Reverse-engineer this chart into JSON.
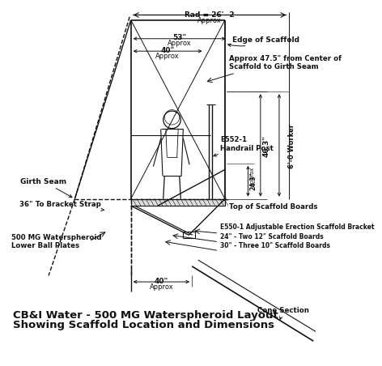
{
  "line_color": "#111111",
  "title_line1": "CB&I Water - 500 MG Waterspheroid Layout",
  "title_line2": "Showing Scaffold Location and Dimensions",
  "annotations": {
    "rad_label": "Rad = 26'- 2",
    "rad_sub": "Approx",
    "edge_scaffold": "Edge of Scaffold",
    "approx475a": "Approx 47.5\" from Center of",
    "approx475b": "Scaffold to Girth Seam",
    "dim53": "53\"",
    "approx53": "Approx",
    "dim40a": "40\"",
    "approx40a": "Approx",
    "girth_seam": "Girth Seam",
    "bracket36": "36\" To Bracket Strap",
    "lower_ball1": "500 MG Waterspheroid",
    "lower_ball2": "Lower Ball Plates",
    "handrail1": "E552-1",
    "handrail2": "Handrail Post",
    "dim243": "24.3\"",
    "approx243": "Approx",
    "dim463": "46.3\"",
    "worker60": "6'-0 Worker",
    "top_boards": "Top of Scaffold Boards",
    "bracket_label": "E550-1 Adjustable Erection Scaffold Bracket",
    "boards24": "24\" - Two 12\" Scaffold Boards",
    "boards30": "30\" - Three 10\" Scaffold Boards",
    "dim40b": "40\"",
    "approx40b": "Approx",
    "cone": "Cone Section"
  }
}
